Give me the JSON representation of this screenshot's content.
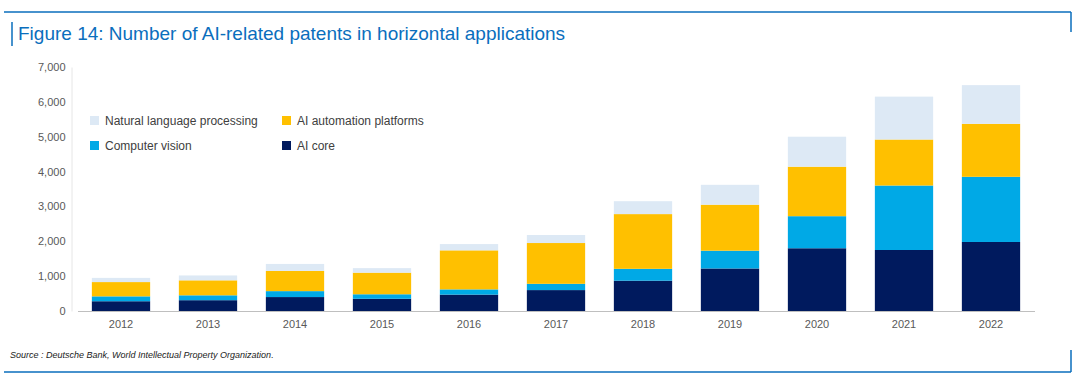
{
  "chart_data": {
    "type": "bar",
    "stacked": true,
    "title": "Figure 14: Number of AI-related patents in horizontal applications",
    "annotations": [
      "Source : Deutsche Bank, World Intellectual Property Organization."
    ],
    "categories": [
      "2012",
      "2013",
      "2014",
      "2015",
      "2016",
      "2017",
      "2018",
      "2019",
      "2020",
      "2021",
      "2022"
    ],
    "series": [
      {
        "name": "AI core",
        "color": "#001a5e",
        "values": [
          280,
          310,
          400,
          350,
          470,
          600,
          870,
          1220,
          1800,
          1750,
          1980
        ]
      },
      {
        "name": "Computer vision",
        "color": "#00a9e6",
        "values": [
          140,
          140,
          170,
          130,
          150,
          180,
          340,
          510,
          920,
          1850,
          1870
        ]
      },
      {
        "name": "AI automation platforms",
        "color": "#ffc000",
        "values": [
          410,
          430,
          580,
          620,
          1120,
          1170,
          1570,
          1320,
          1420,
          1320,
          1520
        ]
      },
      {
        "name": "Natural language processing",
        "color": "#dde9f5",
        "values": [
          120,
          140,
          200,
          130,
          180,
          230,
          370,
          570,
          860,
          1230,
          1110
        ]
      }
    ],
    "ylim": [
      0,
      7000
    ],
    "yticks": [
      0,
      {
        "value": 1000,
        "label": "1,000"
      },
      {
        "value": 2000,
        "label": "2,000"
      },
      {
        "value": 3000,
        "label": "3,000"
      },
      {
        "value": 4000,
        "label": "4,000"
      },
      {
        "value": 5000,
        "label": "5,000"
      },
      {
        "value": 6000,
        "label": "6,000"
      },
      {
        "value": 7000,
        "label": "7,000"
      }
    ],
    "grid": false,
    "legend": "top-left"
  }
}
